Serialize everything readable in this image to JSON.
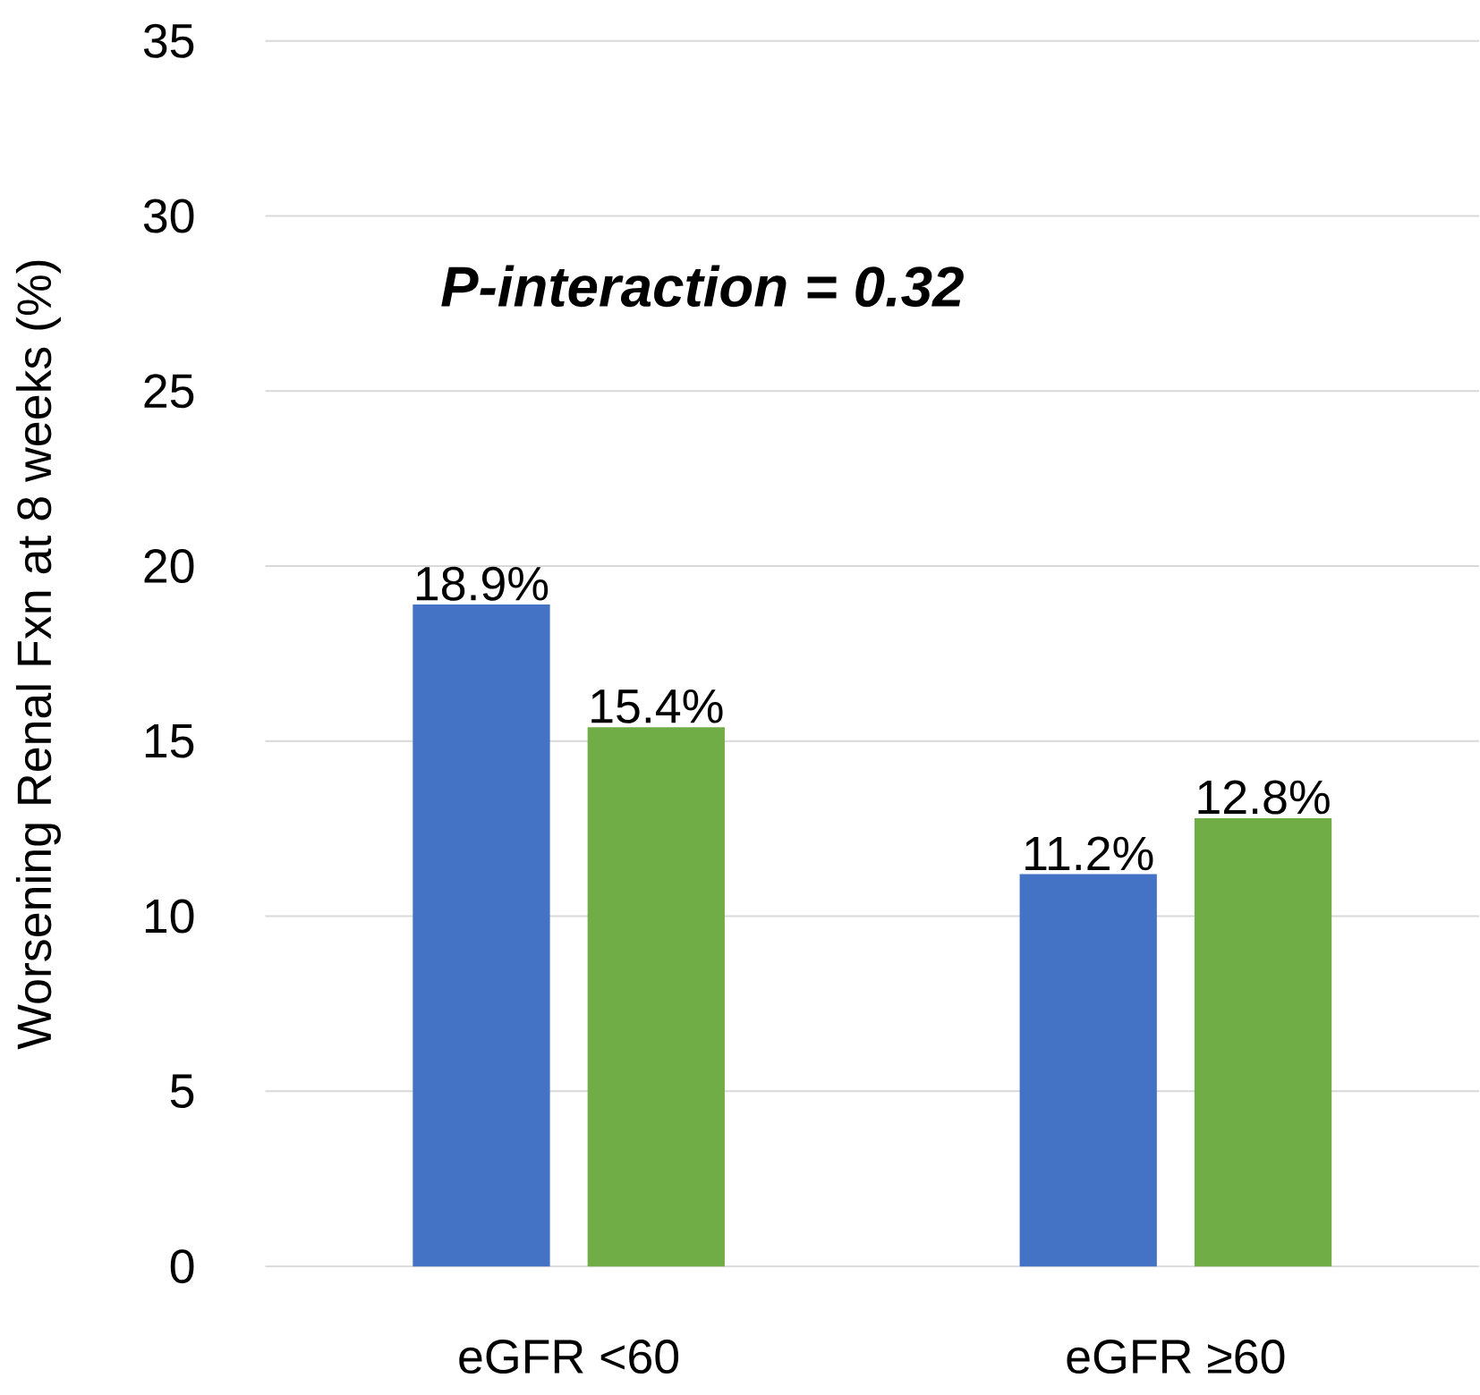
{
  "chart_data": {
    "type": "bar",
    "ylabel": "Worsening Renal Fxn at 8 weeks (%)",
    "categories": [
      "eGFR <60",
      "eGFR ≥60"
    ],
    "series": [
      {
        "color": "#4472c4",
        "values": [
          18.9,
          11.2
        ],
        "value_labels": [
          "18.9%",
          "11.2%"
        ]
      },
      {
        "color": "#70ad47",
        "values": [
          15.4,
          12.8
        ],
        "value_labels": [
          "15.4%",
          "12.8%"
        ]
      }
    ],
    "ylim": [
      0,
      35
    ],
    "yticks": [
      0,
      5,
      10,
      15,
      20,
      25,
      30,
      35
    ],
    "grid": "y",
    "annotations": [
      "P-interaction = 0.32"
    ]
  }
}
